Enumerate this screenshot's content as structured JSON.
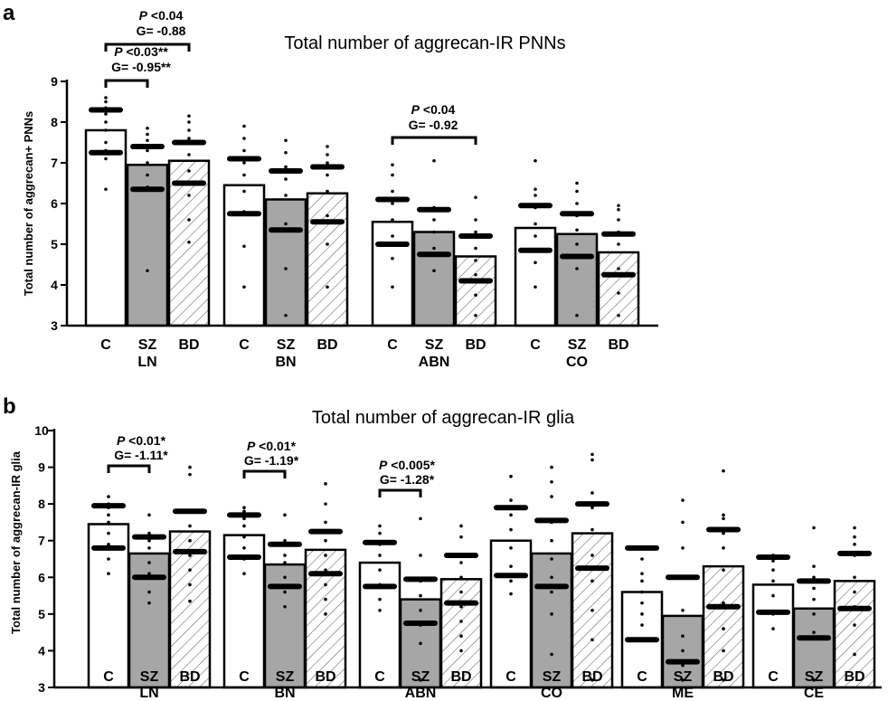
{
  "colors": {
    "C": "#ffffff",
    "SZ": "#a6a6a6",
    "BD": "hatched",
    "axis": "#000000",
    "marker": "#000000"
  },
  "chart_data": [
    {
      "panel": "a",
      "type": "bar",
      "title": "Total number of aggrecan-IR PNNs",
      "ylabel": "Total number of aggrecan+ PNNs",
      "ylim": [
        3,
        9
      ],
      "yticks": [
        "3",
        "4",
        "5",
        "6",
        "7",
        "8",
        "9"
      ],
      "categories": [
        "C",
        "SZ",
        "BD"
      ],
      "groups": [
        {
          "name": "LN",
          "values": [
            7.8,
            6.95,
            7.05
          ],
          "markers": [
            [
              7.25,
              8.3
            ],
            [
              6.35,
              7.4
            ],
            [
              6.5,
              7.5
            ]
          ],
          "points": [
            [
              6.35,
              7.1,
              7.3,
              7.5,
              7.8,
              8.0,
              8.2,
              8.35,
              8.5,
              8.6
            ],
            [
              4.35,
              6.4,
              6.7,
              7.0,
              7.3,
              7.55,
              7.7,
              7.85
            ],
            [
              5.05,
              5.6,
              6.2,
              6.8,
              7.2,
              7.6,
              7.8,
              8.0,
              8.15
            ]
          ]
        },
        {
          "name": "BN",
          "values": [
            6.45,
            6.1,
            6.25
          ],
          "markers": [
            [
              5.75,
              7.1
            ],
            [
              5.35,
              6.8
            ],
            [
              5.55,
              6.9
            ]
          ],
          "points": [
            [
              3.95,
              4.95,
              5.8,
              6.3,
              6.7,
              7.0,
              7.3,
              7.6,
              7.9
            ],
            [
              3.25,
              4.4,
              5.5,
              6.2,
              6.6,
              6.9,
              7.25,
              7.55
            ],
            [
              3.95,
              5.0,
              5.7,
              6.3,
              6.7,
              7.0,
              7.2,
              7.4
            ]
          ]
        },
        {
          "name": "ABN",
          "values": [
            5.55,
            5.3,
            4.7
          ],
          "markers": [
            [
              5.0,
              6.1
            ],
            [
              4.75,
              5.85
            ],
            [
              4.1,
              5.2
            ]
          ],
          "points": [
            [
              3.95,
              4.65,
              5.2,
              5.6,
              6.0,
              6.3,
              6.7,
              6.95
            ],
            [
              4.35,
              4.9,
              5.3,
              5.6,
              5.9,
              7.05
            ],
            [
              3.25,
              3.75,
              4.25,
              4.6,
              4.9,
              5.3,
              5.6,
              6.15
            ]
          ]
        },
        {
          "name": "CO",
          "values": [
            5.4,
            5.25,
            4.8
          ],
          "markers": [
            [
              4.85,
              5.95
            ],
            [
              4.7,
              5.75
            ],
            [
              4.25,
              5.25
            ]
          ],
          "points": [
            [
              3.95,
              4.55,
              5.2,
              5.5,
              5.9,
              6.2,
              6.35,
              7.05
            ],
            [
              3.25,
              4.4,
              5.0,
              5.35,
              5.7,
              6.0,
              6.3,
              6.5
            ],
            [
              3.25,
              3.8,
              4.4,
              5.0,
              5.3,
              5.6,
              5.85,
              5.95
            ]
          ]
        }
      ],
      "comparisons": [
        {
          "group": 0,
          "from": 0,
          "to": 2,
          "p": "<0.04",
          "g": "G= -0.88"
        },
        {
          "group": 0,
          "from": 0,
          "to": 1,
          "p": "<0.03**",
          "g": "G= -0.95**"
        },
        {
          "group": 2,
          "from": 0,
          "to": 2,
          "p": "<0.04",
          "g": "G= -0.92"
        }
      ]
    },
    {
      "panel": "b",
      "type": "bar",
      "title": "Total number of aggrecan-IR glia",
      "ylabel": "Total number of aggrecan-IR glia",
      "ylim": [
        3,
        10
      ],
      "yticks": [
        "3",
        "4",
        "5",
        "6",
        "7",
        "8",
        "9",
        "10"
      ],
      "categories": [
        "C",
        "SZ",
        "BD"
      ],
      "groups": [
        {
          "name": "LN",
          "values": [
            7.45,
            6.65,
            7.25
          ],
          "markers": [
            [
              6.8,
              7.95
            ],
            [
              6.0,
              7.1
            ],
            [
              6.7,
              7.8
            ]
          ],
          "points": [
            [
              6.1,
              6.5,
              6.9,
              7.2,
              7.5,
              7.7,
              7.9,
              8.0,
              8.2
            ],
            [
              5.3,
              5.6,
              6.1,
              6.4,
              6.8,
              7.0,
              7.2,
              7.7
            ],
            [
              5.35,
              5.8,
              6.2,
              6.6,
              7.0,
              7.4,
              7.8,
              8.8,
              9.0
            ]
          ]
        },
        {
          "name": "BN",
          "values": [
            7.15,
            6.35,
            6.75
          ],
          "markers": [
            [
              6.55,
              7.7
            ],
            [
              5.75,
              6.9
            ],
            [
              6.1,
              7.25
            ]
          ],
          "points": [
            [
              6.1,
              6.5,
              6.8,
              7.1,
              7.4,
              7.6,
              7.8,
              7.9
            ],
            [
              5.2,
              5.6,
              6.0,
              6.4,
              6.6,
              7.0,
              7.7
            ],
            [
              5.0,
              5.4,
              5.8,
              6.2,
              6.6,
              7.0,
              7.5,
              8.0,
              8.55
            ]
          ]
        },
        {
          "name": "ABN",
          "values": [
            6.4,
            5.4,
            5.95
          ],
          "markers": [
            [
              5.75,
              6.95
            ],
            [
              4.75,
              5.95
            ],
            [
              5.3,
              6.6
            ]
          ],
          "points": [
            [
              5.1,
              5.4,
              5.8,
              6.2,
              6.6,
              6.9,
              7.2,
              7.4
            ],
            [
              3.2,
              4.2,
              4.7,
              5.1,
              5.5,
              5.9,
              6.6,
              7.6
            ],
            [
              4.0,
              4.4,
              4.8,
              5.2,
              5.6,
              6.0,
              6.4,
              7.1,
              7.4
            ]
          ]
        },
        {
          "name": "CO",
          "values": [
            7.0,
            6.65,
            7.2
          ],
          "markers": [
            [
              6.05,
              7.9
            ],
            [
              5.75,
              7.55
            ],
            [
              6.25,
              8.0
            ]
          ],
          "points": [
            [
              5.55,
              5.9,
              6.3,
              6.8,
              7.3,
              7.7,
              8.1,
              8.75
            ],
            [
              3.9,
              5.0,
              5.6,
              6.0,
              6.5,
              7.0,
              7.5,
              8.2,
              8.6,
              9.0
            ],
            [
              3.2,
              4.3,
              5.1,
              5.9,
              6.6,
              7.3,
              7.9,
              8.3,
              9.2,
              9.35
            ]
          ]
        },
        {
          "name": "ME",
          "values": [
            5.6,
            4.95,
            6.3
          ],
          "markers": [
            [
              4.3,
              6.8
            ],
            [
              3.7,
              6.0
            ],
            [
              5.2,
              7.3
            ]
          ],
          "points": [
            [
              4.7,
              5.0,
              5.3,
              5.6,
              5.9,
              6.1,
              6.5
            ],
            [
              3.2,
              3.6,
              4.0,
              4.4,
              5.1,
              6.8,
              7.5,
              8.1
            ],
            [
              3.2,
              4.0,
              4.6,
              5.3,
              6.2,
              6.8,
              7.2,
              7.6,
              7.7,
              8.9
            ]
          ]
        },
        {
          "name": "CE",
          "values": [
            5.8,
            5.15,
            5.9
          ],
          "markers": [
            [
              5.05,
              6.55
            ],
            [
              4.35,
              5.9
            ],
            [
              5.15,
              6.65
            ]
          ],
          "points": [
            [
              4.6,
              5.0,
              5.5,
              5.9,
              6.2,
              6.45,
              6.6
            ],
            [
              3.2,
              4.5,
              5.0,
              5.4,
              5.7,
              6.0,
              6.3,
              7.35
            ],
            [
              3.9,
              4.7,
              5.2,
              5.6,
              6.0,
              6.6,
              6.9,
              7.1,
              7.35
            ]
          ]
        }
      ],
      "comparisons": [
        {
          "group": 0,
          "from": 0,
          "to": 1,
          "p": "<0.01*",
          "g": "G= -1.11*"
        },
        {
          "group": 1,
          "from": 0,
          "to": 1,
          "p": "<0.01*",
          "g": "G= -1.19*"
        },
        {
          "group": 2,
          "from": 0,
          "to": 1,
          "p": "<0.005*",
          "g": "G= -1.28*"
        }
      ]
    }
  ]
}
